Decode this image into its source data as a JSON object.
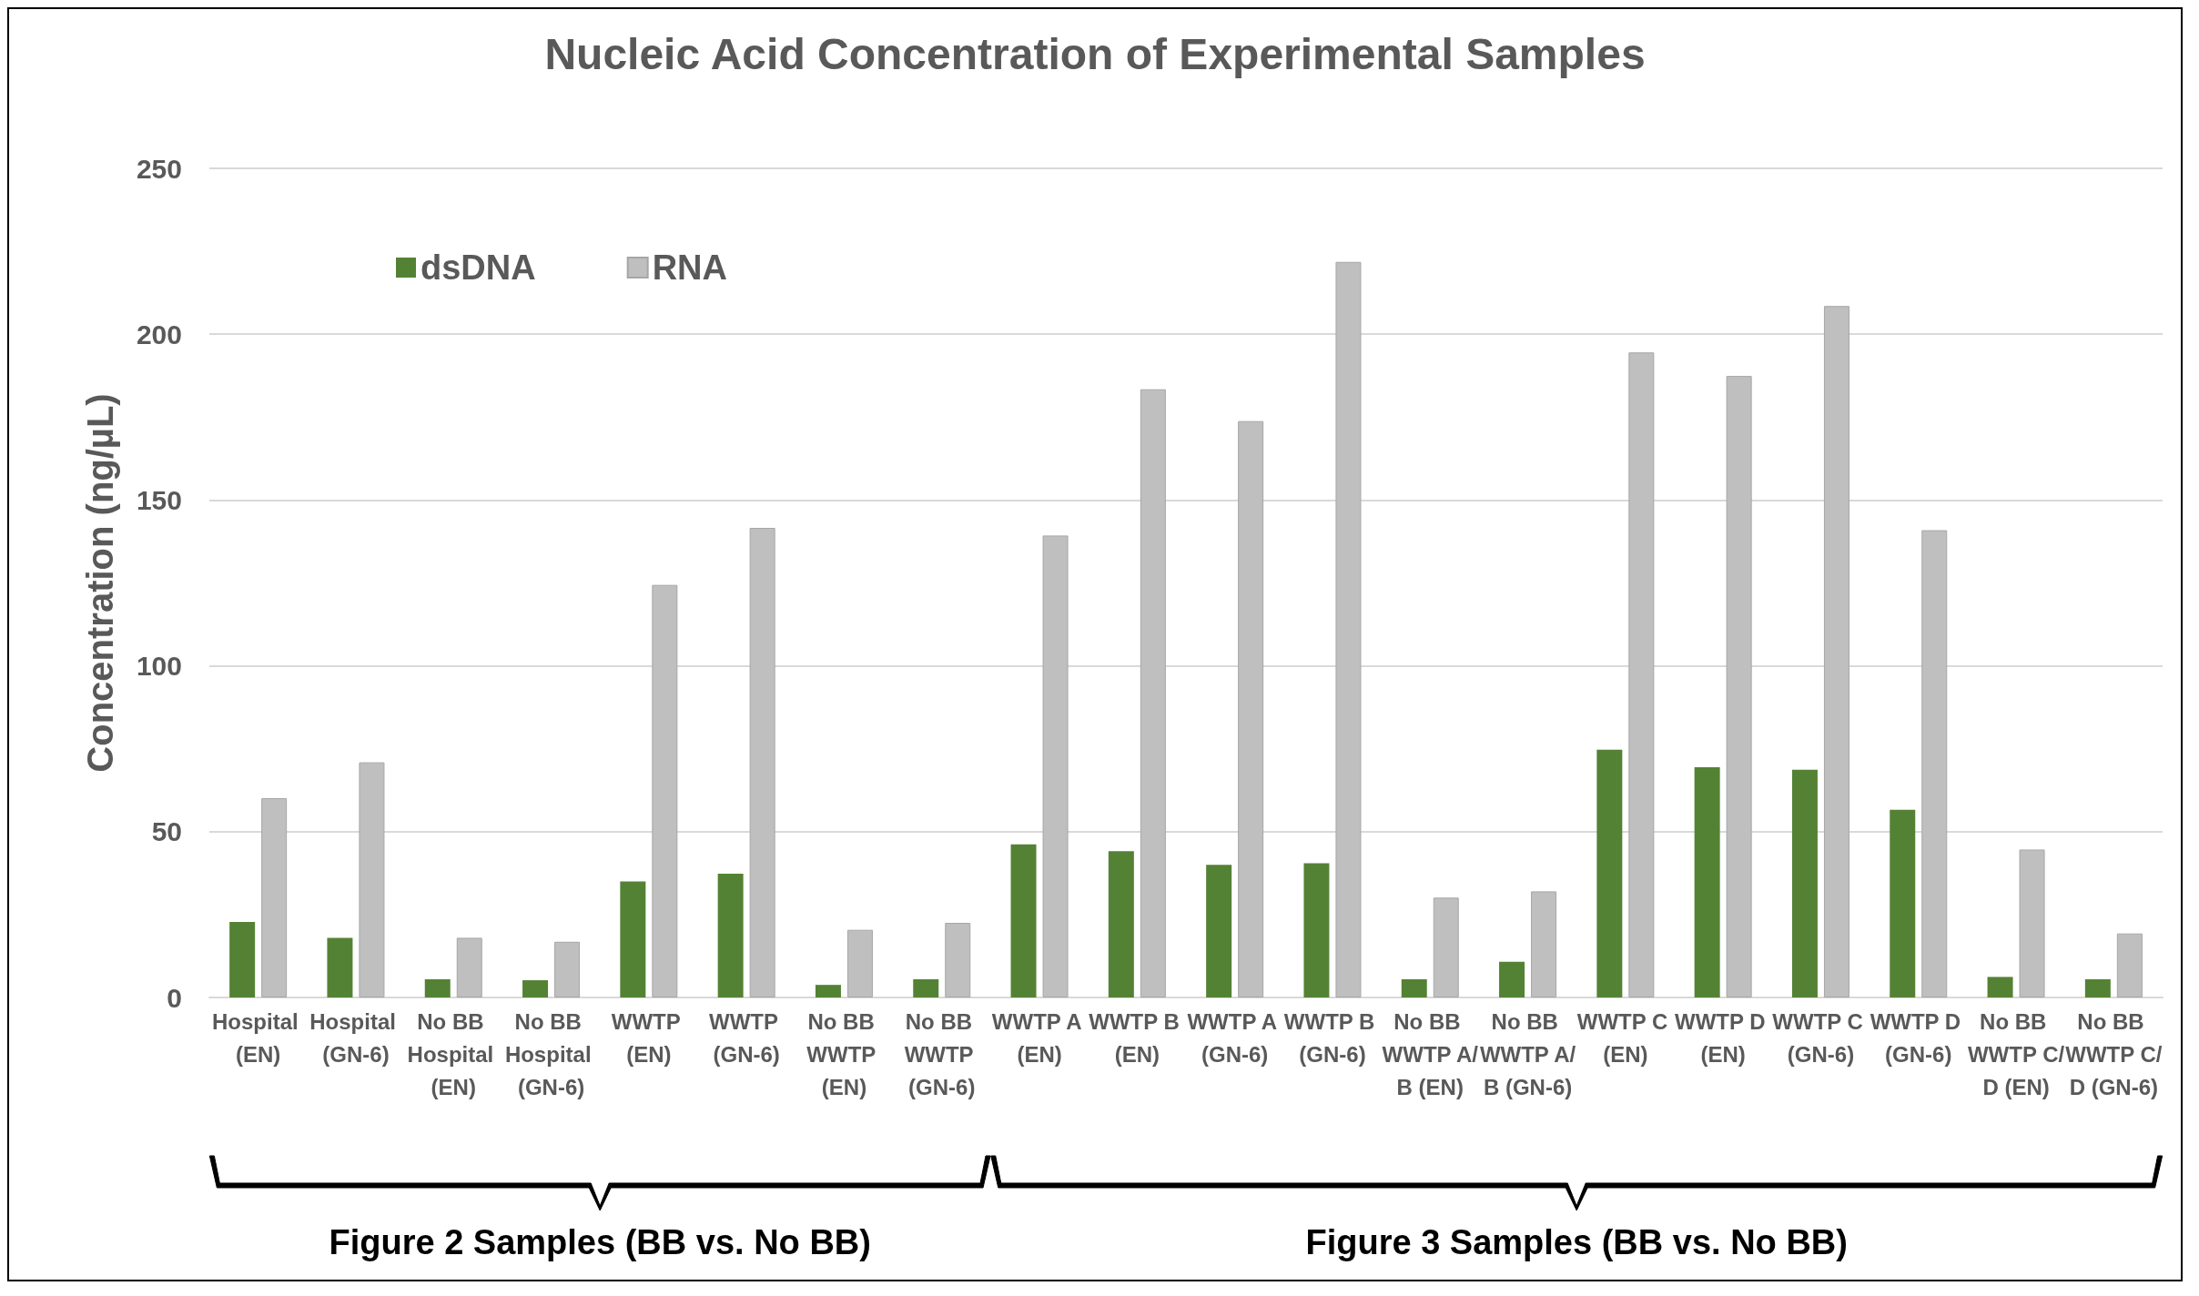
{
  "chart_data": {
    "type": "bar",
    "title": "Nucleic Acid Concentration of Experimental Samples",
    "ylabel": "Concentration (ng/µL)",
    "categories": [
      "Hospital (EN)",
      "Hospital (GN-6)",
      "No BB Hospital (EN)",
      "No BB Hospital (GN-6)",
      "WWTP (EN)",
      "WWTP (GN-6)",
      "No BB WWTP (EN)",
      "No BB WWTP (GN-6)",
      "WWTP A (EN)",
      "WWTP B (EN)",
      "WWTP A (GN-6)",
      "WWTP B (GN-6)",
      "No BB WWTP A/B (EN)",
      "No BB WWTP A/B (GN-6)",
      "WWTP C (EN)",
      "WWTP D (EN)",
      "WWTP C (GN-6)",
      "WWTP D (GN-6)",
      "No BB WWTP C/D (EN)",
      "No BB WWTP C/D (GN-6)"
    ],
    "series": [
      {
        "name": "dsDNA",
        "color": "#548235",
        "values": [
          22.8,
          18.0,
          5.5,
          5.2,
          35.0,
          37.3,
          3.8,
          5.5,
          46.2,
          44.1,
          40.0,
          40.5,
          5.5,
          10.8,
          74.7,
          69.4,
          68.7,
          56.6,
          6.2,
          5.5
        ]
      },
      {
        "name": "RNA",
        "color": "#bfbfbf",
        "values": [
          60.1,
          70.9,
          18.0,
          16.8,
          124.4,
          141.6,
          20.4,
          22.5,
          139.3,
          183.4,
          173.8,
          221.8,
          30.1,
          32.0,
          194.5,
          187.4,
          208.5,
          140.9,
          44.6,
          19.3
        ]
      }
    ],
    "ylim": [
      0,
      250
    ],
    "yticks": [
      0,
      50,
      100,
      150,
      200,
      250
    ],
    "grid": "y",
    "legend": "top left",
    "annotations": [
      "Figure 2 Samples (BB vs. No BB)",
      "Figure 3 Samples (BB vs. No BB)"
    ]
  }
}
